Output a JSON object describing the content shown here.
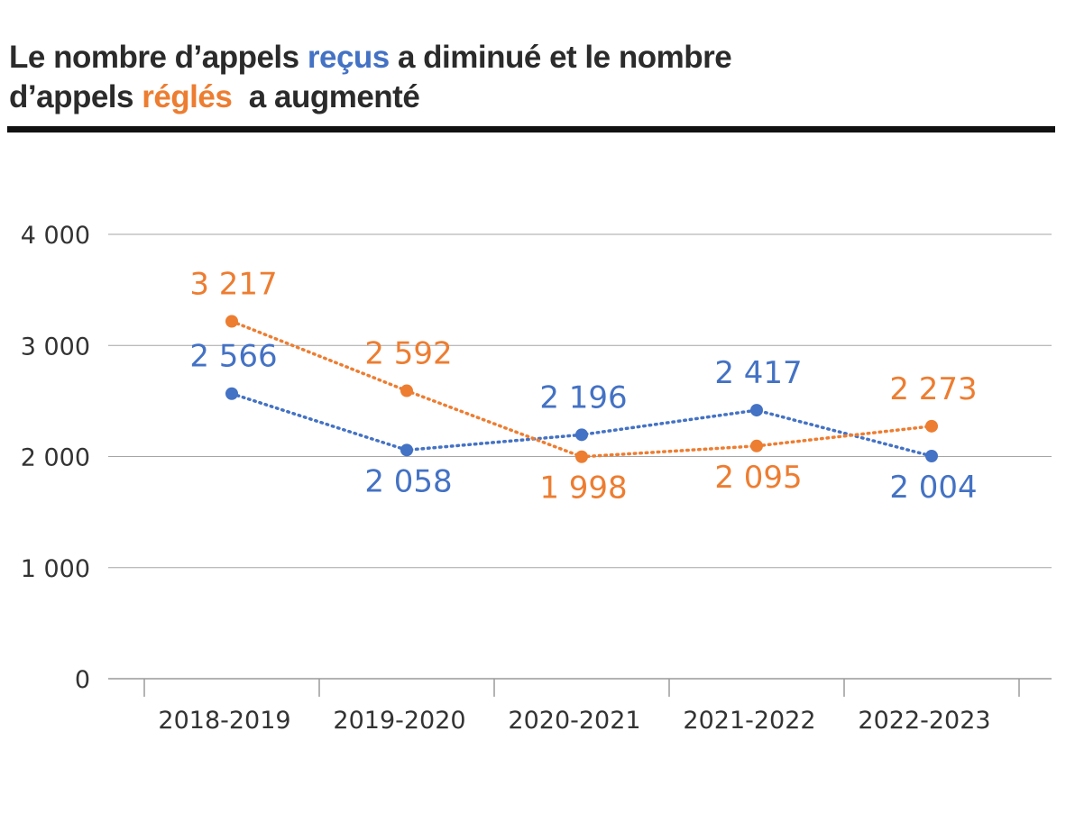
{
  "title": {
    "parts": [
      {
        "text": "Le nombre d’appels ",
        "role": "plain"
      },
      {
        "text": "reçus",
        "role": "series-0"
      },
      {
        "text": " a diminué et le nombre d’appels ",
        "role": "plain"
      },
      {
        "text": "réglés",
        "role": "series-1"
      },
      {
        "text": "  a augmenté",
        "role": "plain"
      }
    ]
  },
  "colors": {
    "text": "#2b2b2b",
    "recus": "#4472c4",
    "regles": "#ed7d31",
    "grid": "#a6a6a6",
    "rule": "#111111"
  },
  "chart_data": {
    "type": "line",
    "categories": [
      "2018-2019",
      "2019-2020",
      "2020-2021",
      "2021-2022",
      "2022-2023"
    ],
    "series": [
      {
        "name": "reçus",
        "color": "#4472c4",
        "values": [
          2566,
          2058,
          2196,
          2417,
          2004
        ],
        "labels": [
          "2 566",
          "2 058",
          "2 196",
          "2 417",
          "2 004"
        ],
        "label_side": [
          "above",
          "below",
          "above",
          "above",
          "below"
        ],
        "line_style": "dotted"
      },
      {
        "name": "réglés",
        "color": "#ed7d31",
        "values": [
          3217,
          2592,
          1998,
          2095,
          2273
        ],
        "labels": [
          "3 217",
          "2 592",
          "1 998",
          "2 095",
          "2 273"
        ],
        "label_side": [
          "above",
          "above",
          "below",
          "below",
          "above"
        ],
        "line_style": "dotted"
      }
    ],
    "ylim": [
      0,
      4000
    ],
    "yticks": [
      0,
      1000,
      2000,
      3000,
      4000
    ],
    "ytick_labels": [
      "0",
      "1 000",
      "2 000",
      "3 000",
      "4 000"
    ],
    "grid": true,
    "legend": "none",
    "xlabel": "",
    "ylabel": ""
  }
}
